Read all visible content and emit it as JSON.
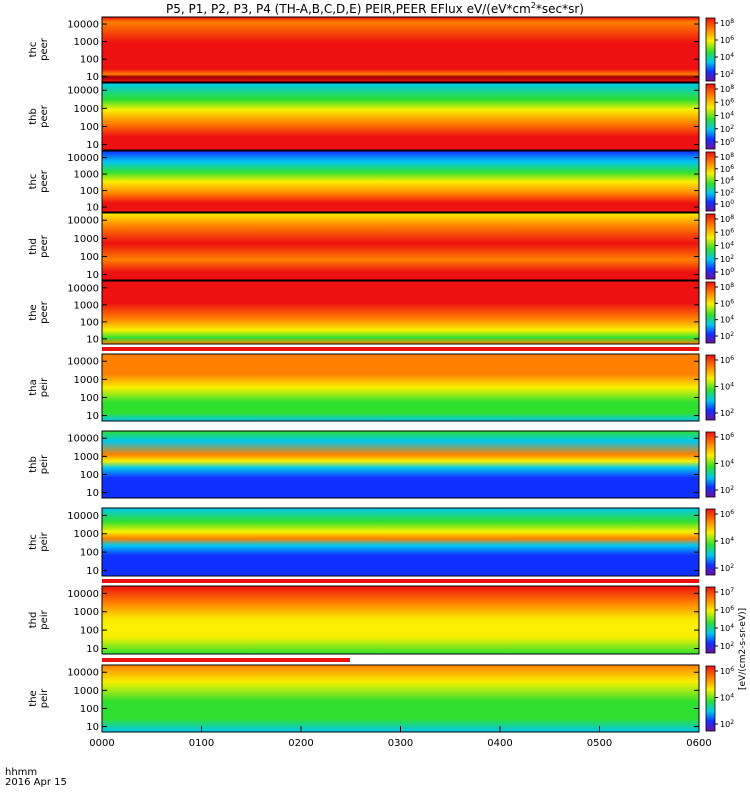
{
  "title": "P5, P1, P2, P3, P4 (TH-A,B,C,D,E) PEIR,PEER EFlux eV/(eV*cm",
  "title_sup": "2",
  "title_tail": "*sec*sr)",
  "colorbar_unit_label": "[eV/(cm2-s-sr-eV)]",
  "footer": {
    "line1": "hhmm",
    "line2": "2016 Apr 15"
  },
  "colors": {
    "red": "#ee1111",
    "orange": "#ff8000",
    "yellow": "#f8f000",
    "green": "#30e030",
    "cyan": "#00c8f0",
    "blue": "#1030ff",
    "purple": "#7010a0",
    "darkred": "#a00000"
  },
  "chart_data": {
    "type": "heatmap",
    "title": "P5, P1, P2, P3, P4 (TH-A,B,C,D,E) PEIR,PEER EFlux eV/(eV*cm2*sec*sr)",
    "xlabel": "hhmm",
    "x_ticks": [
      "0000",
      "0100",
      "0200",
      "0300",
      "0400",
      "0500",
      "0600"
    ],
    "xlim": [
      "00:00",
      "06:00"
    ],
    "date": "2016 Apr 15",
    "y_scale": "log",
    "y_ticks": [
      "10",
      "100",
      "1000",
      "10000"
    ],
    "colorscale": "rainbow (purple-blue-cyan-green-yellow-red)",
    "panels": [
      {
        "label": [
          "thc",
          "peer"
        ],
        "species": "electron",
        "probe": "P2",
        "cbar_ticks": [
          "10^8",
          "10^6",
          "10^4",
          "10^2"
        ]
      },
      {
        "label": [
          "thb",
          "peer"
        ],
        "species": "electron",
        "probe": "P1",
        "cbar_ticks": [
          "10^8",
          "10^6",
          "10^4",
          "10^2",
          "10^0"
        ]
      },
      {
        "label": [
          "thc",
          "peer"
        ],
        "species": "electron",
        "probe": "P2",
        "cbar_ticks": [
          "10^8",
          "10^6",
          "10^4",
          "10^2",
          "10^0"
        ]
      },
      {
        "label": [
          "thd",
          "peer"
        ],
        "species": "electron",
        "probe": "P3",
        "cbar_ticks": [
          "10^8",
          "10^6",
          "10^4",
          "10^2",
          "10^0"
        ]
      },
      {
        "label": [
          "the",
          "peer"
        ],
        "species": "electron",
        "probe": "P4",
        "cbar_ticks": [
          "10^8",
          "10^6",
          "10^4",
          "10^2"
        ]
      },
      {
        "label": [
          "tha",
          "peir"
        ],
        "species": "ion",
        "probe": "P5",
        "cbar_ticks": [
          "10^6",
          "10^4",
          "10^2"
        ]
      },
      {
        "label": [
          "thb",
          "peir"
        ],
        "species": "ion",
        "probe": "P1",
        "cbar_ticks": [
          "10^6",
          "10^4",
          "10^2"
        ]
      },
      {
        "label": [
          "thc",
          "peir"
        ],
        "species": "ion",
        "probe": "P2",
        "cbar_ticks": [
          "10^6",
          "10^4",
          "10^2"
        ]
      },
      {
        "label": [
          "thd",
          "peir"
        ],
        "species": "ion",
        "probe": "P3",
        "cbar_ticks": [
          "10^7",
          "10^6",
          "10^4",
          "10^2"
        ]
      },
      {
        "label": [
          "the",
          "peir"
        ],
        "species": "ion",
        "probe": "P4",
        "cbar_ticks": [
          "10^6",
          "10^4",
          "10^2"
        ]
      }
    ]
  }
}
